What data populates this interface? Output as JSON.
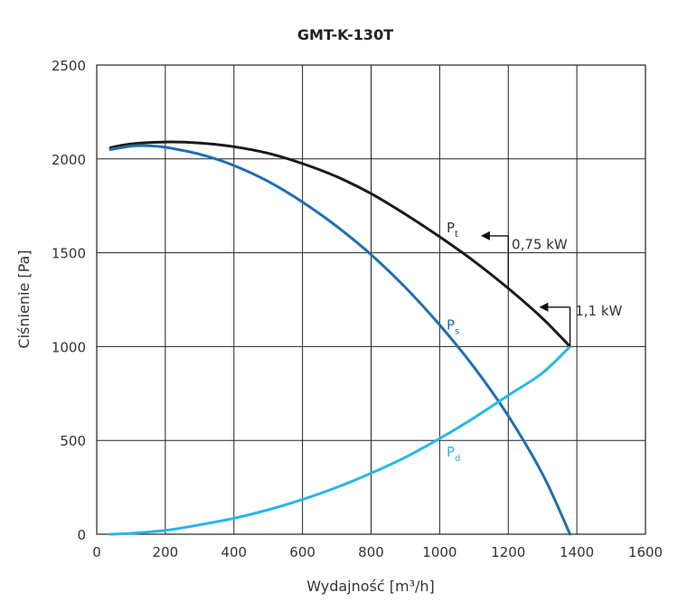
{
  "chart_data": {
    "type": "line",
    "title": "GMT-K-130T",
    "xlabel": "Wydajność [m³/h]",
    "ylabel": "Ciśnienie [Pa]",
    "xlim": [
      0,
      1600
    ],
    "ylim": [
      0,
      2500
    ],
    "xticks": [
      0,
      200,
      400,
      600,
      800,
      1000,
      1200,
      1400,
      1600
    ],
    "yticks": [
      0,
      500,
      1000,
      1500,
      2000,
      2500
    ],
    "grid": true,
    "series": [
      {
        "name": "Pt",
        "name_main": "P",
        "name_sub": "t",
        "color": "#1a1a1a",
        "x": [
          40,
          100,
          200,
          300,
          400,
          500,
          600,
          700,
          800,
          900,
          1000,
          1100,
          1200,
          1300,
          1380
        ],
        "y": [
          2060,
          2080,
          2090,
          2085,
          2065,
          2030,
          1975,
          1905,
          1815,
          1705,
          1585,
          1455,
          1310,
          1150,
          1000
        ],
        "label_pos": [
          1020,
          1610
        ]
      },
      {
        "name": "Ps",
        "name_main": "P",
        "name_sub": "s",
        "color": "#1f6fb2",
        "x": [
          40,
          100,
          150,
          200,
          300,
          400,
          500,
          600,
          700,
          800,
          900,
          1000,
          1100,
          1200,
          1300,
          1380
        ],
        "y": [
          2050,
          2068,
          2070,
          2062,
          2025,
          1965,
          1880,
          1770,
          1640,
          1490,
          1315,
          1115,
          890,
          630,
          320,
          0
        ],
        "label_pos": [
          1020,
          1090
        ]
      },
      {
        "name": "Pd",
        "name_main": "P",
        "name_sub": "d",
        "color": "#29b6e8",
        "x": [
          40,
          100,
          200,
          300,
          400,
          500,
          600,
          700,
          800,
          900,
          1000,
          1100,
          1200,
          1300,
          1380
        ],
        "y": [
          0,
          5,
          20,
          50,
          85,
          130,
          185,
          250,
          325,
          410,
          510,
          620,
          740,
          860,
          1000
        ],
        "label_pos": [
          1020,
          415
        ]
      }
    ],
    "annotations": [
      {
        "text": "0,75 kW",
        "arrow_from": [
          1200,
          1590
        ],
        "arrow_to": [
          1120,
          1590
        ],
        "vline": [
          1200,
          1590,
          1200,
          1310
        ],
        "label_pos": [
          1210,
          1520
        ]
      },
      {
        "text": "1,1 kW",
        "arrow_from": [
          1380,
          1210
        ],
        "arrow_to": [
          1290,
          1210
        ],
        "vline": [
          1380,
          1210,
          1380,
          1000
        ],
        "label_pos": [
          1395,
          1165
        ]
      }
    ]
  }
}
